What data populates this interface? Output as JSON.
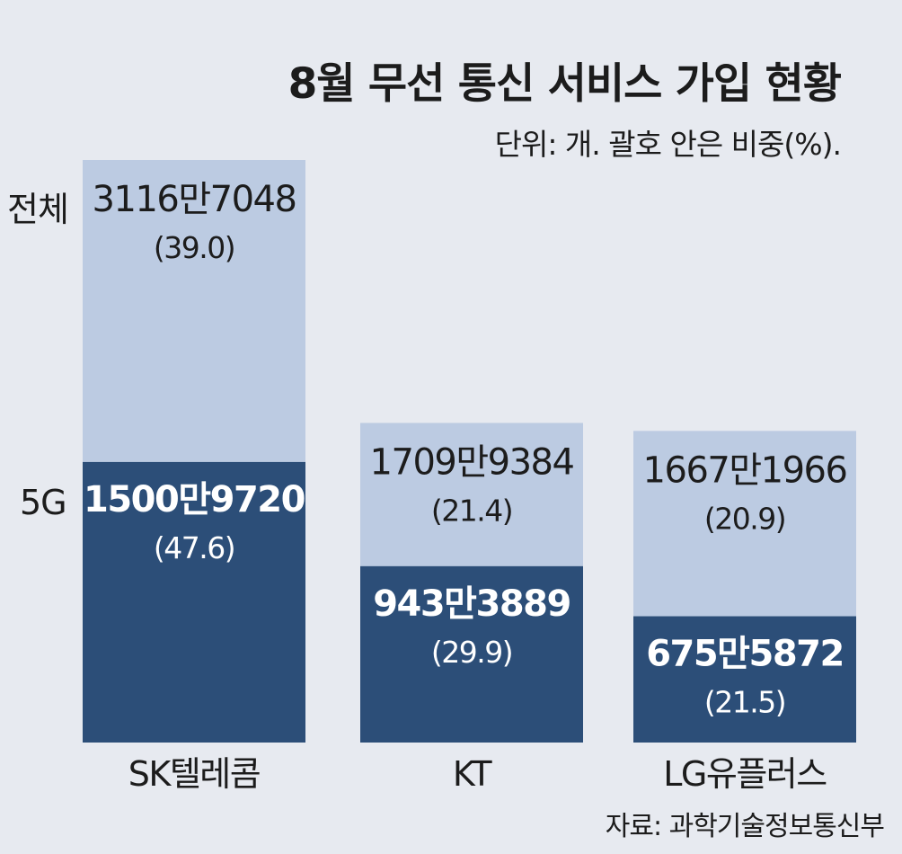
{
  "title": "8월 무선 통신 서비스 가입 현황",
  "unit_note": "단위: 개. 괄호 안은 비중(%).",
  "source": "자료: 과학기술정보통신부",
  "row_labels": {
    "total": "전체",
    "fiveg": "5G"
  },
  "colors": {
    "background": "#e7eaf0",
    "total": "#bccbe2",
    "fiveg": "#2c4e78",
    "total_text": "#1c1c1c",
    "fiveg_text": "#ffffff"
  },
  "chart_data": {
    "type": "bar",
    "stacking": "overlay",
    "categories": [
      "SK텔레콤",
      "KT",
      "LG유플러스"
    ],
    "series": [
      {
        "name": "전체",
        "values": [
          31167048,
          17099384,
          16671966
        ],
        "labels": [
          "3116만7048",
          "1709만9384",
          "1667만1966"
        ],
        "shares": [
          "(39.0)",
          "(21.4)",
          "(20.9)"
        ]
      },
      {
        "name": "5G",
        "values": [
          15009720,
          9433889,
          6755872
        ],
        "labels": [
          "1500만9720",
          "943만3889",
          "675만5872"
        ],
        "shares": [
          "(47.6)",
          "(29.9)",
          "(21.5)"
        ]
      }
    ]
  }
}
